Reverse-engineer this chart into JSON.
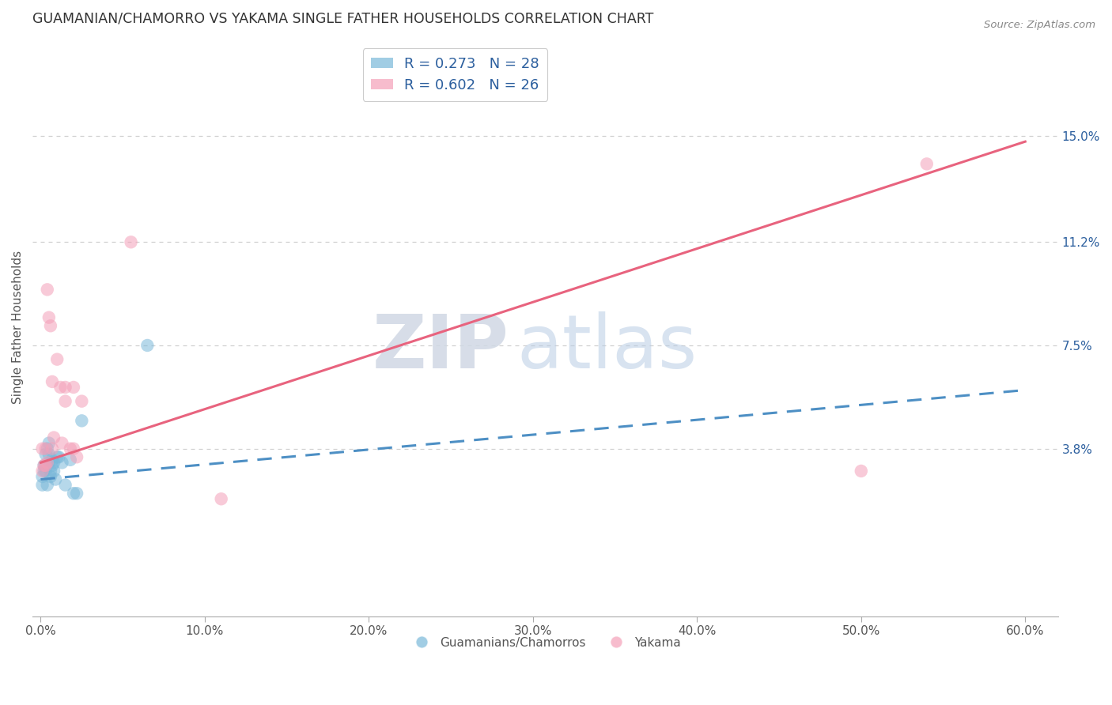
{
  "title": "GUAMANIAN/CHAMORRO VS YAKAMA SINGLE FATHER HOUSEHOLDS CORRELATION CHART",
  "source": "Source: ZipAtlas.com",
  "ylabel": "Single Father Households",
  "xlabel_ticks": [
    "0.0%",
    "10.0%",
    "20.0%",
    "30.0%",
    "40.0%",
    "50.0%",
    "60.0%"
  ],
  "xlabel_vals": [
    0.0,
    0.1,
    0.2,
    0.3,
    0.4,
    0.5,
    0.6
  ],
  "ytick_labels": [
    "15.0%",
    "11.2%",
    "7.5%",
    "3.8%"
  ],
  "ytick_vals": [
    0.15,
    0.112,
    0.075,
    0.038
  ],
  "xlim": [
    -0.005,
    0.62
  ],
  "ylim": [
    -0.022,
    0.185
  ],
  "blue_R": 0.273,
  "blue_N": 28,
  "pink_R": 0.602,
  "pink_N": 26,
  "blue_label": "Guamanians/Chamorros",
  "pink_label": "Yakama",
  "blue_color": "#7ab8d9",
  "pink_color": "#f4a0b8",
  "blue_line_color": "#4d8fc4",
  "pink_line_color": "#e8637e",
  "watermark_zip": "ZIP",
  "watermark_atlas": "atlas",
  "blue_scatter_x": [
    0.001,
    0.001,
    0.002,
    0.002,
    0.003,
    0.003,
    0.003,
    0.004,
    0.004,
    0.005,
    0.005,
    0.005,
    0.006,
    0.006,
    0.007,
    0.007,
    0.008,
    0.008,
    0.009,
    0.01,
    0.011,
    0.013,
    0.015,
    0.018,
    0.02,
    0.022,
    0.025,
    0.065
  ],
  "blue_scatter_y": [
    0.025,
    0.028,
    0.03,
    0.032,
    0.03,
    0.032,
    0.036,
    0.025,
    0.038,
    0.033,
    0.036,
    0.04,
    0.028,
    0.03,
    0.032,
    0.034,
    0.03,
    0.033,
    0.027,
    0.035,
    0.035,
    0.033,
    0.025,
    0.034,
    0.022,
    0.022,
    0.048,
    0.075
  ],
  "pink_scatter_x": [
    0.001,
    0.001,
    0.002,
    0.003,
    0.003,
    0.004,
    0.004,
    0.005,
    0.006,
    0.007,
    0.007,
    0.008,
    0.01,
    0.012,
    0.013,
    0.015,
    0.018,
    0.02,
    0.02,
    0.022,
    0.025,
    0.055,
    0.11,
    0.015,
    0.5,
    0.54
  ],
  "pink_scatter_y": [
    0.03,
    0.038,
    0.032,
    0.032,
    0.038,
    0.033,
    0.095,
    0.085,
    0.082,
    0.062,
    0.038,
    0.042,
    0.07,
    0.06,
    0.04,
    0.055,
    0.038,
    0.06,
    0.038,
    0.035,
    0.055,
    0.112,
    0.02,
    0.06,
    0.03,
    0.14
  ],
  "blue_line_x": [
    0.0,
    0.6
  ],
  "blue_line_y_start": 0.027,
  "blue_line_y_end": 0.059,
  "pink_line_x": [
    0.0,
    0.6
  ],
  "pink_line_y_start": 0.033,
  "pink_line_y_end": 0.148,
  "legend_color": "#2c5f9e",
  "title_color": "#333333",
  "grid_color": "#d0d0d0",
  "axis_color": "#aaaaaa"
}
